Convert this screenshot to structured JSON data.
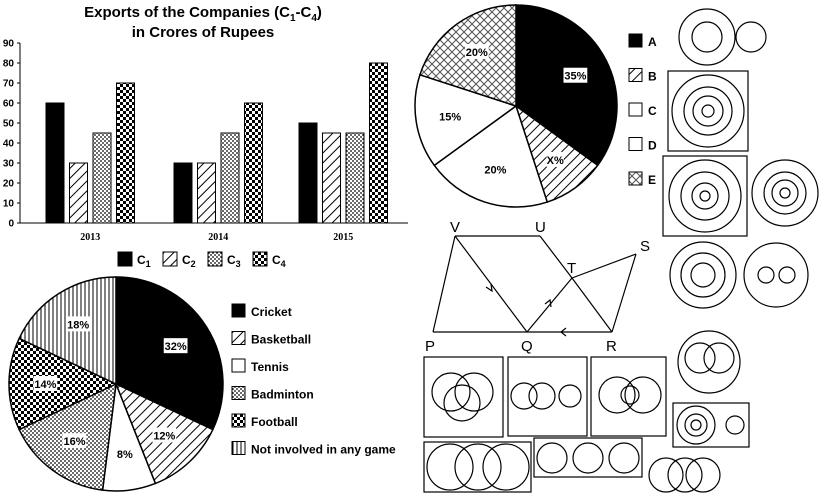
{
  "chart_data": [
    {
      "type": "bar",
      "title_line1": "Exports of the Companies (C",
      "title_sub1": "1",
      "title_mid": "-C",
      "title_sub2": "4",
      "title_end": ")",
      "title_line2": "in Crores of Rupees",
      "categories": [
        "2013",
        "2014",
        "2015"
      ],
      "series": [
        {
          "name": "C",
          "sub": "1",
          "values": [
            60,
            30,
            50
          ]
        },
        {
          "name": "C",
          "sub": "2",
          "values": [
            30,
            30,
            45
          ]
        },
        {
          "name": "C",
          "sub": "3",
          "values": [
            45,
            45,
            45
          ]
        },
        {
          "name": "C",
          "sub": "4",
          "values": [
            70,
            60,
            80
          ]
        }
      ],
      "ylim": [
        0,
        90
      ],
      "yticks": [
        "0",
        "10",
        "20",
        "30",
        "40",
        "50",
        "60",
        "70",
        "80",
        "90"
      ],
      "grid": false,
      "legend_position": "bottom"
    },
    {
      "type": "pie",
      "slices": [
        {
          "label": "Cricket",
          "value": 32,
          "text": "32%"
        },
        {
          "label": "Basketball",
          "value": 12,
          "text": "12%"
        },
        {
          "label": "Tennis",
          "value": 8,
          "text": "8%"
        },
        {
          "label": "Badminton",
          "value": 16,
          "text": "16%"
        },
        {
          "label": "Football",
          "value": 14,
          "text": "14%"
        },
        {
          "label": "Not involved in any game",
          "value": 18,
          "text": "18%"
        }
      ],
      "legend_position": "right"
    },
    {
      "type": "pie",
      "slices": [
        {
          "label": "A",
          "value": 35,
          "text": "35%"
        },
        {
          "label": "B",
          "value": 10,
          "text": "X%"
        },
        {
          "label": "C",
          "value": 20,
          "text": "20%"
        },
        {
          "label": "D",
          "value": 15,
          "text": "15%"
        },
        {
          "label": "E",
          "value": 20,
          "text": "20%"
        }
      ],
      "legend_position": "right"
    }
  ],
  "diagram": {
    "points": [
      "V",
      "U",
      "S",
      "T",
      "P",
      "Q",
      "R"
    ]
  }
}
